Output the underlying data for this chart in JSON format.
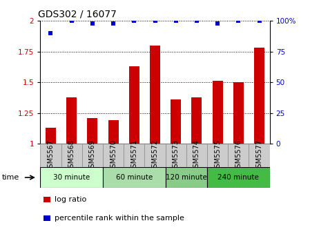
{
  "title": "GDS302 / 16077",
  "samples": [
    "GSM5567",
    "GSM5568",
    "GSM5569",
    "GSM5570",
    "GSM5571",
    "GSM5572",
    "GSM5573",
    "GSM5574",
    "GSM5575",
    "GSM5576",
    "GSM5577"
  ],
  "log_ratio": [
    1.13,
    1.38,
    1.21,
    1.19,
    1.63,
    1.8,
    1.36,
    1.38,
    1.51,
    1.5,
    1.78
  ],
  "percentile_rank": [
    90,
    100,
    98,
    98,
    100,
    100,
    100,
    100,
    98,
    100,
    100
  ],
  "bar_color": "#cc0000",
  "dot_color": "#0000cc",
  "ylim_left": [
    1.0,
    2.0
  ],
  "ylim_right": [
    0,
    100
  ],
  "yticks_left": [
    1.0,
    1.25,
    1.5,
    1.75,
    2.0
  ],
  "ytick_labels_left": [
    "1",
    "1.25",
    "1.5",
    "1.75",
    "2"
  ],
  "yticks_right": [
    0,
    25,
    50,
    75,
    100
  ],
  "ytick_labels_right": [
    "0",
    "25",
    "50",
    "75",
    "100%"
  ],
  "groups": [
    {
      "label": "30 minute",
      "span": [
        0,
        2
      ],
      "color": "#ccffcc"
    },
    {
      "label": "60 minute",
      "span": [
        3,
        5
      ],
      "color": "#aaddaa"
    },
    {
      "label": "120 minute",
      "span": [
        6,
        7
      ],
      "color": "#88cc88"
    },
    {
      "label": "240 minute",
      "span": [
        8,
        10
      ],
      "color": "#44bb44"
    }
  ],
  "time_label": "time",
  "legend_log_ratio": "log ratio",
  "legend_percentile": "percentile rank within the sample",
  "background_color": "#ffffff",
  "tick_label_color_left": "#cc0000",
  "tick_label_color_right": "#0000cc",
  "xlabel_bg": "#cccccc",
  "bar_width": 0.5
}
